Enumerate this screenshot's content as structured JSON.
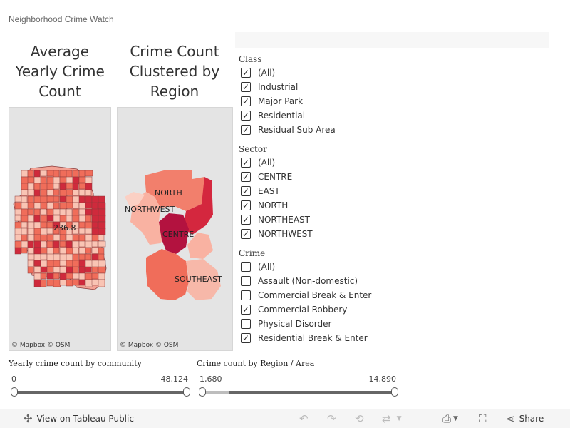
{
  "dashboard_title": "Neighborhood Crime Watch",
  "maps": {
    "map1": {
      "title": "Average Yearly Crime Count",
      "label": "236.8",
      "attribution": "© Mapbox  © OSM"
    },
    "map2": {
      "title": "Crime Count Clustered by Region",
      "regions": [
        "NORTH",
        "NORTHWEST",
        "CENTRE",
        "SOUTHEAST"
      ],
      "attribution": "© Mapbox  © OSM"
    }
  },
  "filters": {
    "class": {
      "title": "Class",
      "items": [
        {
          "label": "(All)",
          "checked": true
        },
        {
          "label": "Industrial",
          "checked": true
        },
        {
          "label": "Major Park",
          "checked": true
        },
        {
          "label": "Residential",
          "checked": true
        },
        {
          "label": "Residual Sub Area",
          "checked": true
        }
      ]
    },
    "sector": {
      "title": "Sector",
      "items": [
        {
          "label": "(All)",
          "checked": true
        },
        {
          "label": "CENTRE",
          "checked": true
        },
        {
          "label": "EAST",
          "checked": true
        },
        {
          "label": "NORTH",
          "checked": true
        },
        {
          "label": "NORTHEAST",
          "checked": true
        },
        {
          "label": "NORTHWEST",
          "checked": true
        }
      ]
    },
    "crime": {
      "title": "Crime",
      "items": [
        {
          "label": "(All)",
          "checked": false
        },
        {
          "label": "Assault (Non-domestic)",
          "checked": false
        },
        {
          "label": "Commercial Break & Enter",
          "checked": false
        },
        {
          "label": "Commercial Robbery",
          "checked": true
        },
        {
          "label": "Physical Disorder",
          "checked": false
        },
        {
          "label": "Residential Break & Enter",
          "checked": true
        }
      ]
    }
  },
  "sliders": {
    "community": {
      "title": "Yearly crime count by community",
      "min": "0",
      "max": "48,124",
      "range_start_fraction": 0.0,
      "range_end_fraction": 1.0
    },
    "region": {
      "title": "Crime count by Region / Area",
      "min": "1,680",
      "max": "14,890",
      "range_start_fraction": 0.0,
      "range_end_fraction": 1.0
    }
  },
  "toolbar": {
    "view_label": "View on Tableau Public",
    "share_label": "Share",
    "icons": [
      "tableau-icon",
      "undo-icon",
      "redo-icon",
      "revert-icon",
      "refresh-icon",
      "download-icon",
      "fullscreen-icon",
      "share-icon"
    ]
  },
  "colors": {
    "low": "#f9c4b4",
    "mid": "#f06d5a",
    "high": "#cf2a3c",
    "max": "#b3123f",
    "map_bg": "#e4e4e4"
  }
}
